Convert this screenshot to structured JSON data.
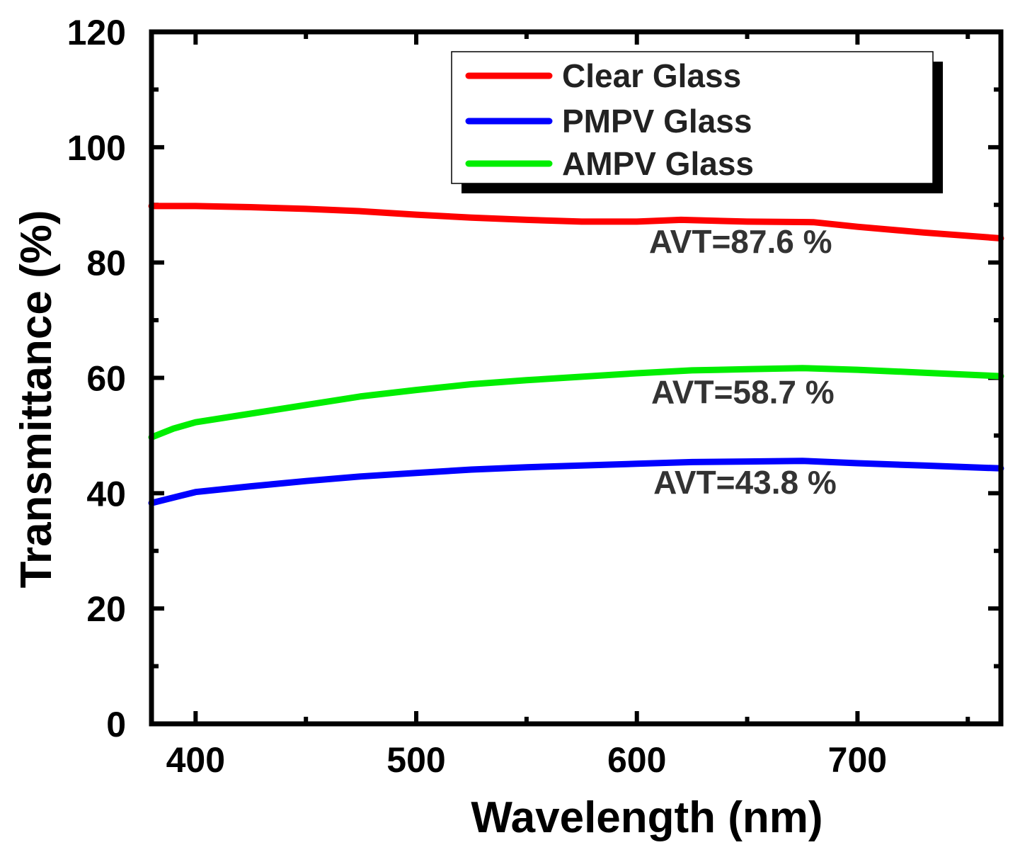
{
  "chart_data": {
    "type": "line",
    "xlabel": "Wavelength (nm)",
    "ylabel": "Transmittance (%)",
    "xlim": [
      380,
      765
    ],
    "ylim": [
      0,
      120
    ],
    "xticks": [
      400,
      500,
      600,
      700
    ],
    "yticks": [
      0,
      20,
      40,
      60,
      80,
      100,
      120
    ],
    "grid": false,
    "legend_position": "top-right",
    "series": [
      {
        "name": "Clear Glass",
        "color": "#ff0000",
        "x": [
          380,
          400,
          425,
          450,
          475,
          500,
          525,
          550,
          575,
          600,
          620,
          650,
          680,
          700,
          730,
          765
        ],
        "y": [
          89.8,
          89.8,
          89.6,
          89.3,
          88.9,
          88.3,
          87.8,
          87.4,
          87.1,
          87.1,
          87.4,
          87.1,
          87.0,
          86.2,
          85.2,
          84.2
        ]
      },
      {
        "name": "PMPV Glass",
        "color": "#0000ff",
        "x": [
          380,
          400,
          425,
          450,
          475,
          500,
          525,
          550,
          575,
          600,
          625,
          650,
          675,
          700,
          730,
          765
        ],
        "y": [
          38.3,
          40.2,
          41.2,
          42.1,
          42.9,
          43.5,
          44.1,
          44.5,
          44.8,
          45.1,
          45.4,
          45.5,
          45.6,
          45.2,
          44.8,
          44.3
        ]
      },
      {
        "name": "AMPV Glass",
        "color": "#00ee00",
        "x": [
          380,
          390,
          400,
          425,
          450,
          475,
          500,
          525,
          550,
          575,
          600,
          625,
          650,
          675,
          700,
          730,
          765
        ],
        "y": [
          49.7,
          51.2,
          52.3,
          53.8,
          55.3,
          56.8,
          57.9,
          58.9,
          59.6,
          60.2,
          60.8,
          61.3,
          61.5,
          61.7,
          61.4,
          60.9,
          60.3
        ]
      }
    ],
    "annotations": [
      {
        "text": "AVT=87.6 %",
        "x": 647,
        "y": 81.7
      },
      {
        "text": "AVT=58.7 %",
        "x": 648,
        "y": 55.6
      },
      {
        "text": "AVT=43.8 %",
        "x": 649,
        "y": 39.9
      }
    ]
  }
}
